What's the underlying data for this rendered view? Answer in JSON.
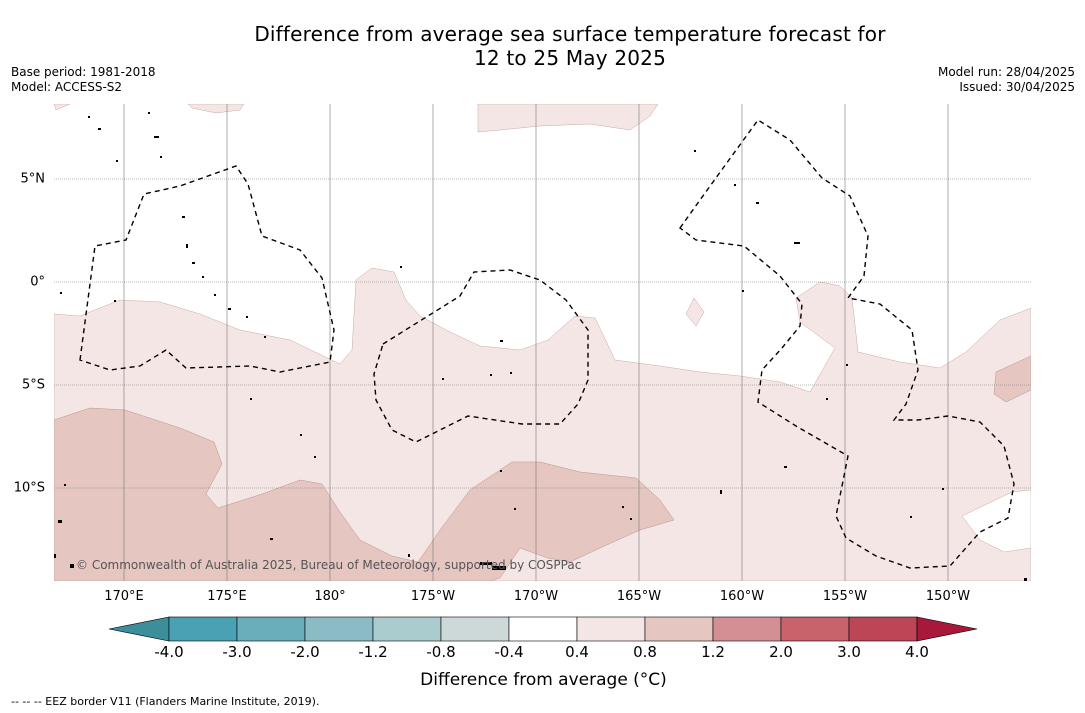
{
  "header": {
    "title_line1": "Difference from average sea surface temperature forecast for",
    "title_line2": "12 to 25 May 2025",
    "base_period": "Base period: 1981-2018",
    "model": "Model: ACCESS-S2",
    "model_run": "Model run: 28/04/2025",
    "issued": "Issued: 30/04/2025"
  },
  "map": {
    "longitude_labels": [
      "170°E",
      "175°E",
      "180°",
      "175°W",
      "170°W",
      "165°W",
      "160°W",
      "155°W",
      "150°W"
    ],
    "latitude_labels": [
      "5°N",
      "0°",
      "5°S",
      "10°S"
    ],
    "copyright": "© Commonwealth of Australia 2025, Bureau of Meteorology, supported by COSPPac"
  },
  "colorbar": {
    "ticks": [
      "-4.0",
      "-3.0",
      "-2.0",
      "-1.2",
      "-0.8",
      "-0.4",
      "0.4",
      "0.8",
      "1.2",
      "2.0",
      "3.0",
      "4.0"
    ],
    "colors": [
      "#3b8e9a",
      "#4aa1b3",
      "#6aaebc",
      "#8bbcc5",
      "#aaccce",
      "#cdd9d9",
      "#ffffff",
      "#f4e6e4",
      "#e6c6c1",
      "#d48f95",
      "#c8636c",
      "#bc4655",
      "#a8183a"
    ],
    "label": "Difference from average (°C)"
  },
  "legend": {
    "eez_note": "--  --  -- EEZ border V11 (Flanders Marine Institute, 2019)."
  }
}
